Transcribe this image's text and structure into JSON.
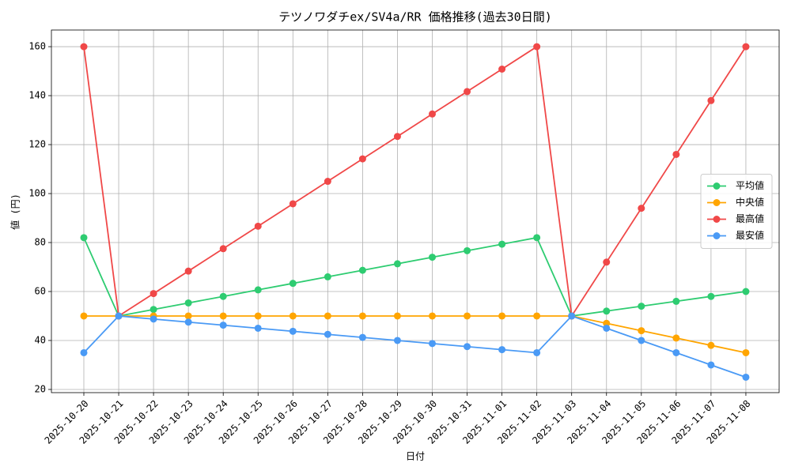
{
  "chart_data": {
    "type": "line",
    "title": "テツノワダチex/SV4a/RR 価格推移(過去30日間)",
    "x_label": "日付",
    "y_label": "値 (円)",
    "categories": [
      "2025-10-20",
      "2025-10-21",
      "2025-10-22",
      "2025-10-23",
      "2025-10-24",
      "2025-10-25",
      "2025-10-26",
      "2025-10-27",
      "2025-10-28",
      "2025-10-29",
      "2025-10-30",
      "2025-10-31",
      "2025-11-01",
      "2025-11-02",
      "2025-11-03",
      "2025-11-04",
      "2025-11-05",
      "2025-11-06",
      "2025-11-07",
      "2025-11-08"
    ],
    "series": [
      {
        "name": "平均値",
        "color": "#2ecc71",
        "values": [
          82,
          50,
          52.67,
          55.33,
          58,
          60.67,
          63.33,
          66,
          68.67,
          71.33,
          74,
          76.67,
          79.33,
          82,
          50,
          52,
          54,
          56,
          58,
          60
        ]
      },
      {
        "name": "中央値",
        "color": "#ffa500",
        "values": [
          50,
          50,
          50,
          50,
          50,
          50,
          50,
          50,
          50,
          50,
          50,
          50,
          50,
          50,
          50,
          47,
          44,
          41,
          38,
          35
        ]
      },
      {
        "name": "最高値",
        "color": "#f04848",
        "values": [
          160,
          50,
          59.17,
          68.33,
          77.5,
          86.67,
          95.83,
          105,
          114.17,
          123.33,
          132.5,
          141.67,
          150.83,
          160,
          50,
          72,
          94,
          116,
          138,
          160
        ]
      },
      {
        "name": "最安値",
        "color": "#4a9af5",
        "values": [
          35,
          50,
          48.75,
          47.5,
          46.25,
          45,
          43.75,
          42.5,
          41.25,
          40,
          38.75,
          37.5,
          36.25,
          35,
          50,
          45,
          40,
          35,
          30,
          25
        ]
      }
    ],
    "ylim": [
      18.7,
      166.8
    ],
    "yticks": [
      20,
      40,
      60,
      80,
      100,
      120,
      140,
      160
    ],
    "grid": true,
    "legend": "center right"
  }
}
